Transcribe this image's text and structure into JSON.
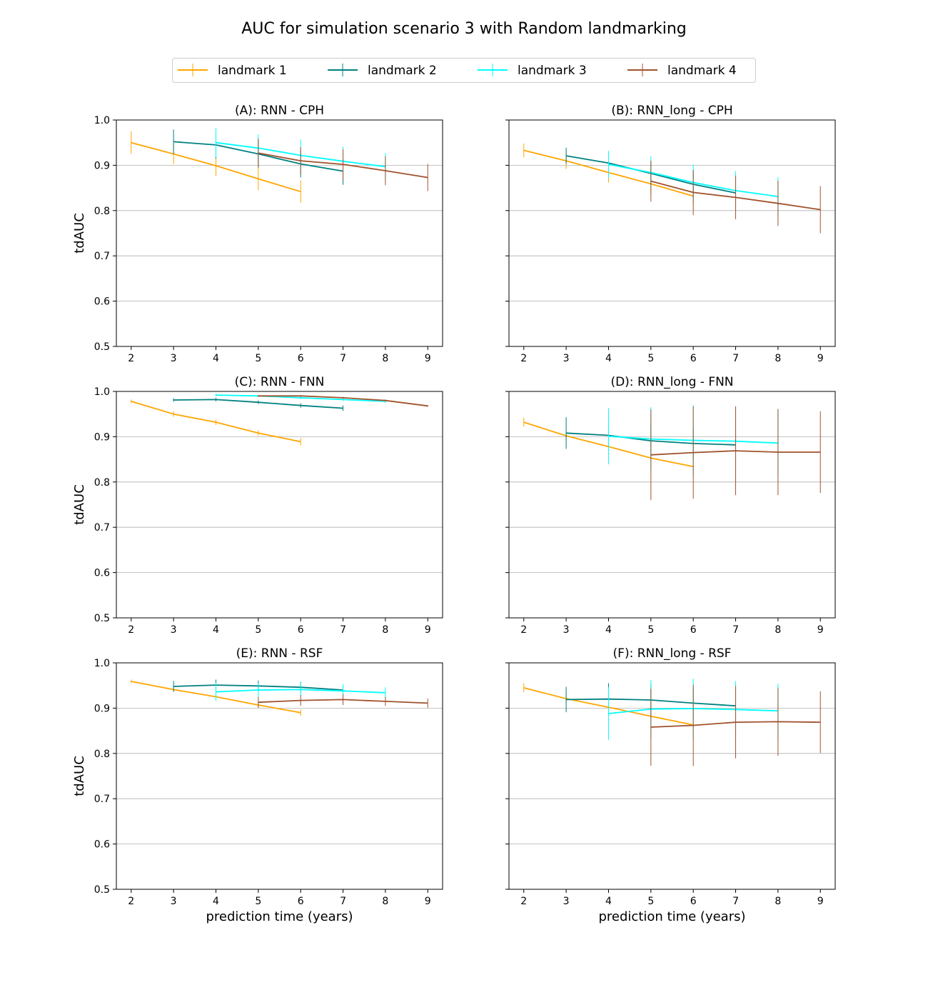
{
  "figure": {
    "title": "AUC for simulation scenario 3 with Random landmarking"
  },
  "legend": [
    {
      "label": "landmark 1",
      "color": "#FFA500"
    },
    {
      "label": "landmark 2",
      "color": "#008080"
    },
    {
      "label": "landmark 3",
      "color": "#00FFFF"
    },
    {
      "label": "landmark 4",
      "color": "#A0522D"
    }
  ],
  "chart_data": [
    {
      "type": "line",
      "title": "(A): RNN - CPH",
      "xlabel": "",
      "ylabel": "tdAUC",
      "xlim": [
        1.65,
        9.35
      ],
      "ylim": [
        0.5,
        1.0
      ],
      "xticks": [
        2,
        3,
        4,
        5,
        6,
        7,
        8,
        9
      ],
      "yticks": [
        0.5,
        0.6,
        0.7,
        0.8,
        0.9,
        1.0
      ],
      "grid": "y",
      "series": [
        {
          "name": "landmark 1",
          "x": [
            2,
            3,
            4,
            5,
            6
          ],
          "y": [
            0.95,
            0.925,
            0.899,
            0.87,
            0.842
          ],
          "err": [
            0.025,
            0.023,
            0.023,
            0.025,
            0.025
          ]
        },
        {
          "name": "landmark 2",
          "x": [
            3,
            4,
            5,
            6,
            7
          ],
          "y": [
            0.952,
            0.945,
            0.925,
            0.903,
            0.887
          ],
          "err": [
            0.027,
            0.03,
            0.03,
            0.03,
            0.03
          ]
        },
        {
          "name": "landmark 3",
          "x": [
            4,
            5,
            6,
            7,
            8
          ],
          "y": [
            0.95,
            0.938,
            0.922,
            0.909,
            0.897
          ],
          "err": [
            0.032,
            0.03,
            0.035,
            0.032,
            0.03
          ]
        },
        {
          "name": "landmark 4",
          "x": [
            5,
            6,
            7,
            8,
            9
          ],
          "y": [
            0.927,
            0.91,
            0.902,
            0.888,
            0.873
          ],
          "err": [
            0.032,
            0.03,
            0.033,
            0.032,
            0.03
          ]
        }
      ]
    },
    {
      "type": "line",
      "title": "(B): RNN_long - CPH",
      "xlabel": "",
      "ylabel": "",
      "xlim": [
        1.65,
        9.35
      ],
      "ylim": [
        0.5,
        1.0
      ],
      "xticks": [
        2,
        3,
        4,
        5,
        6,
        7,
        8,
        9
      ],
      "yticks": [
        0.5,
        0.6,
        0.7,
        0.8,
        0.9,
        1.0
      ],
      "grid": "y",
      "series": [
        {
          "name": "landmark 1",
          "x": [
            2,
            3,
            4,
            5,
            6
          ],
          "y": [
            0.933,
            0.91,
            0.884,
            0.859,
            0.832
          ],
          "err": [
            0.015,
            0.018,
            0.022,
            0.022,
            0.02
          ]
        },
        {
          "name": "landmark 2",
          "x": [
            3,
            4,
            5,
            6,
            7
          ],
          "y": [
            0.921,
            0.905,
            0.882,
            0.858,
            0.839
          ],
          "err": [
            0.018,
            0.02,
            0.025,
            0.03,
            0.03
          ]
        },
        {
          "name": "landmark 3",
          "x": [
            4,
            5,
            6,
            7,
            8
          ],
          "y": [
            0.902,
            0.884,
            0.862,
            0.844,
            0.831
          ],
          "err": [
            0.03,
            0.036,
            0.04,
            0.043,
            0.043
          ]
        },
        {
          "name": "landmark 4",
          "x": [
            5,
            6,
            7,
            8,
            9
          ],
          "y": [
            0.865,
            0.84,
            0.829,
            0.816,
            0.802
          ],
          "err": [
            0.045,
            0.05,
            0.048,
            0.05,
            0.052
          ]
        }
      ]
    },
    {
      "type": "line",
      "title": "(C): RNN - FNN",
      "xlabel": "",
      "ylabel": "tdAUC",
      "xlim": [
        1.65,
        9.35
      ],
      "ylim": [
        0.5,
        1.0
      ],
      "xticks": [
        2,
        3,
        4,
        5,
        6,
        7,
        8,
        9
      ],
      "yticks": [
        0.5,
        0.6,
        0.7,
        0.8,
        0.9,
        1.0
      ],
      "grid": "y",
      "series": [
        {
          "name": "landmark 1",
          "x": [
            2,
            3,
            4,
            5,
            6
          ],
          "y": [
            0.978,
            0.95,
            0.932,
            0.908,
            0.889
          ],
          "err": [
            0.004,
            0.006,
            0.006,
            0.006,
            0.008
          ]
        },
        {
          "name": "landmark 2",
          "x": [
            3,
            4,
            5,
            6,
            7
          ],
          "y": [
            0.981,
            0.982,
            0.976,
            0.969,
            0.963
          ],
          "err": [
            0.004,
            0.004,
            0.004,
            0.005,
            0.006
          ]
        },
        {
          "name": "landmark 3",
          "x": [
            4,
            5,
            6,
            7,
            8
          ],
          "y": [
            0.992,
            0.99,
            0.986,
            0.982,
            0.978
          ],
          "err": [
            0.003,
            0.002,
            0.003,
            0.003,
            0.004
          ]
        },
        {
          "name": "landmark 4",
          "x": [
            5,
            6,
            7,
            8,
            9
          ],
          "y": [
            0.99,
            0.99,
            0.986,
            0.98,
            0.968
          ],
          "err": [
            0.002,
            0.002,
            0.002,
            0.002,
            0.002
          ]
        }
      ]
    },
    {
      "type": "line",
      "title": "(D): RNN_long - FNN",
      "xlabel": "",
      "ylabel": "",
      "xlim": [
        1.65,
        9.35
      ],
      "ylim": [
        0.5,
        1.0
      ],
      "xticks": [
        2,
        3,
        4,
        5,
        6,
        7,
        8,
        9
      ],
      "yticks": [
        0.5,
        0.6,
        0.7,
        0.8,
        0.9,
        1.0
      ],
      "grid": "y",
      "series": [
        {
          "name": "landmark 1",
          "x": [
            2,
            3,
            4,
            5,
            6
          ],
          "y": [
            0.932,
            0.902,
            0.878,
            0.853,
            0.834
          ],
          "err": [
            0.01,
            0.01,
            0.01,
            0.01,
            0.01
          ]
        },
        {
          "name": "landmark 2",
          "x": [
            3,
            4,
            5,
            6,
            7
          ],
          "y": [
            0.908,
            0.903,
            0.891,
            0.885,
            0.882
          ],
          "err": [
            0.035,
            0.035,
            0.035,
            0.035,
            0.035
          ]
        },
        {
          "name": "landmark 3",
          "x": [
            4,
            5,
            6,
            7,
            8
          ],
          "y": [
            0.901,
            0.895,
            0.892,
            0.89,
            0.886
          ],
          "err": [
            0.062,
            0.07,
            0.078,
            0.075,
            0.075
          ]
        },
        {
          "name": "landmark 4",
          "x": [
            5,
            6,
            7,
            8,
            9
          ],
          "y": [
            0.86,
            0.865,
            0.869,
            0.866,
            0.866
          ],
          "err": [
            0.1,
            0.102,
            0.098,
            0.095,
            0.09
          ]
        }
      ]
    },
    {
      "type": "line",
      "title": "(E): RNN - RSF",
      "xlabel": "prediction time (years)",
      "ylabel": "tdAUC",
      "xlim": [
        1.65,
        9.35
      ],
      "ylim": [
        0.5,
        1.0
      ],
      "xticks": [
        2,
        3,
        4,
        5,
        6,
        7,
        8,
        9
      ],
      "yticks": [
        0.5,
        0.6,
        0.7,
        0.8,
        0.9,
        1.0
      ],
      "grid": "y",
      "series": [
        {
          "name": "landmark 1",
          "x": [
            2,
            3,
            4,
            5,
            6
          ],
          "y": [
            0.959,
            0.941,
            0.925,
            0.907,
            0.89
          ],
          "err": [
            0.004,
            0.005,
            0.006,
            0.007,
            0.007
          ]
        },
        {
          "name": "landmark 2",
          "x": [
            3,
            4,
            5,
            6,
            7
          ],
          "y": [
            0.948,
            0.951,
            0.949,
            0.946,
            0.94
          ],
          "err": [
            0.012,
            0.012,
            0.012,
            0.012,
            0.012
          ]
        },
        {
          "name": "landmark 3",
          "x": [
            4,
            5,
            6,
            7,
            8
          ],
          "y": [
            0.936,
            0.94,
            0.941,
            0.938,
            0.934
          ],
          "err": [
            0.02,
            0.015,
            0.015,
            0.015,
            0.012
          ]
        },
        {
          "name": "landmark 4",
          "x": [
            5,
            6,
            7,
            8,
            9
          ],
          "y": [
            0.913,
            0.917,
            0.919,
            0.915,
            0.911
          ],
          "err": [
            0.012,
            0.012,
            0.012,
            0.01,
            0.01
          ]
        }
      ]
    },
    {
      "type": "line",
      "title": "(F): RNN_long - RSF",
      "xlabel": "prediction time (years)",
      "ylabel": "",
      "xlim": [
        1.65,
        9.35
      ],
      "ylim": [
        0.5,
        1.0
      ],
      "xticks": [
        2,
        3,
        4,
        5,
        6,
        7,
        8,
        9
      ],
      "yticks": [
        0.5,
        0.6,
        0.7,
        0.8,
        0.9,
        1.0
      ],
      "grid": "y",
      "series": [
        {
          "name": "landmark 1",
          "x": [
            2,
            3,
            4,
            5,
            6
          ],
          "y": [
            0.945,
            0.921,
            0.902,
            0.882,
            0.863
          ],
          "err": [
            0.01,
            0.01,
            0.01,
            0.01,
            0.01
          ]
        },
        {
          "name": "landmark 2",
          "x": [
            3,
            4,
            5,
            6,
            7
          ],
          "y": [
            0.919,
            0.92,
            0.918,
            0.911,
            0.905
          ],
          "err": [
            0.028,
            0.035,
            0.035,
            0.035,
            0.035
          ]
        },
        {
          "name": "landmark 3",
          "x": [
            4,
            5,
            6,
            7,
            8
          ],
          "y": [
            0.888,
            0.898,
            0.899,
            0.897,
            0.894
          ],
          "err": [
            0.058,
            0.064,
            0.066,
            0.063,
            0.06
          ]
        },
        {
          "name": "landmark 4",
          "x": [
            5,
            6,
            7,
            8,
            9
          ],
          "y": [
            0.858,
            0.862,
            0.869,
            0.87,
            0.869
          ],
          "err": [
            0.085,
            0.09,
            0.08,
            0.075,
            0.068
          ]
        }
      ]
    }
  ]
}
